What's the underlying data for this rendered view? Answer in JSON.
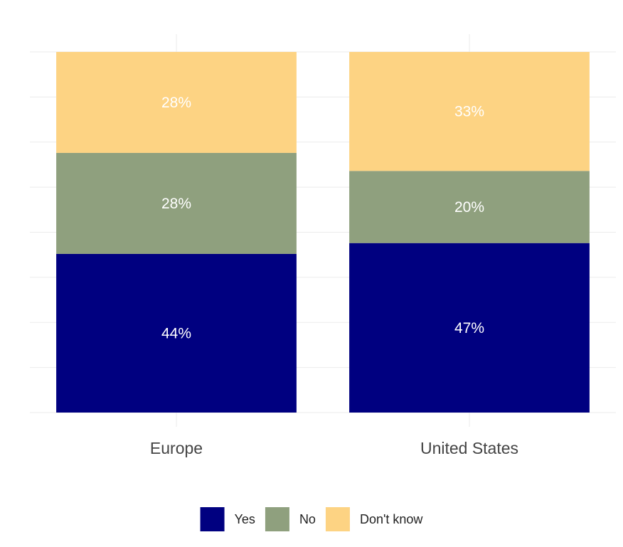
{
  "chart_data": {
    "type": "bar",
    "stacked": true,
    "percent": true,
    "categories": [
      "Europe",
      "United States"
    ],
    "series": [
      {
        "name": "Yes",
        "values": [
          44,
          47
        ],
        "color": "#000080"
      },
      {
        "name": "No",
        "values": [
          28,
          20
        ],
        "color": "#8fa07e"
      },
      {
        "name": "Don't know",
        "values": [
          28,
          33
        ],
        "color": "#fdd383"
      }
    ],
    "value_labels": [
      [
        "44%",
        "47%"
      ],
      [
        "28%",
        "20%"
      ],
      [
        "28%",
        "33%"
      ]
    ],
    "ylim": [
      0,
      100
    ],
    "grid": true,
    "legend_position": "bottom"
  }
}
